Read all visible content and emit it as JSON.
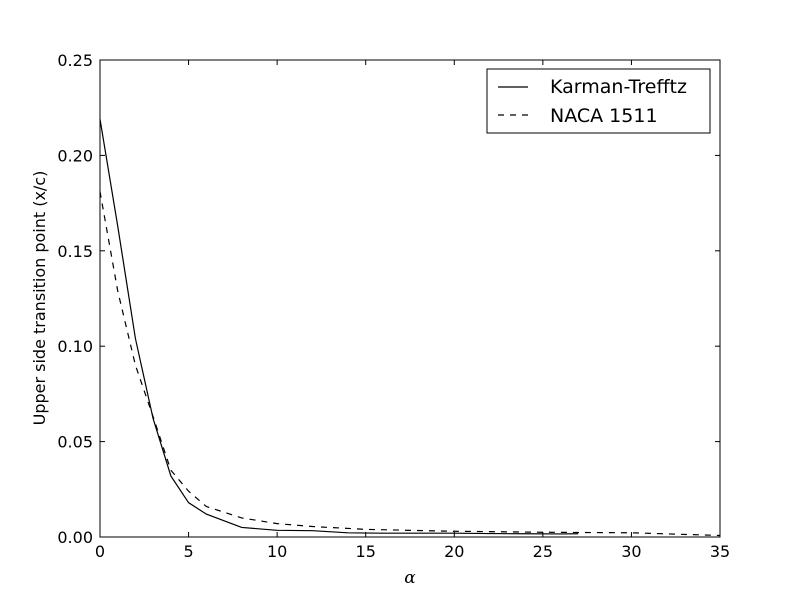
{
  "chart_data": {
    "type": "line",
    "title": "",
    "xlabel": "α",
    "ylabel": "Upper side transition point (x/c)",
    "xlim": [
      0,
      35
    ],
    "ylim": [
      0,
      0.25
    ],
    "xticks": [
      "0",
      "5",
      "10",
      "15",
      "20",
      "25",
      "30",
      "35"
    ],
    "yticks": [
      "0.00",
      "0.05",
      "0.10",
      "0.15",
      "0.20",
      "0.25"
    ],
    "grid": false,
    "legend": "top-right",
    "series": [
      {
        "name": "Karman-Trefftz",
        "style": "solid",
        "x": [
          0,
          1,
          2,
          3,
          4,
          5,
          6,
          8,
          10,
          12,
          14,
          16,
          18,
          20,
          22,
          24,
          26,
          27
        ],
        "y": [
          0.219,
          0.163,
          0.104,
          0.062,
          0.032,
          0.018,
          0.012,
          0.005,
          0.0035,
          0.0033,
          0.0022,
          0.002,
          0.002,
          0.002,
          0.0018,
          0.0017,
          0.0016,
          0.0017
        ]
      },
      {
        "name": "NACA 1511",
        "style": "dashed",
        "x": [
          0,
          1,
          2,
          3,
          4,
          5,
          6,
          8,
          10,
          12,
          15,
          20,
          25,
          30,
          35
        ],
        "y": [
          0.181,
          0.129,
          0.09,
          0.063,
          0.035,
          0.024,
          0.016,
          0.01,
          0.007,
          0.0055,
          0.004,
          0.003,
          0.0025,
          0.0022,
          0.0008
        ]
      }
    ]
  }
}
